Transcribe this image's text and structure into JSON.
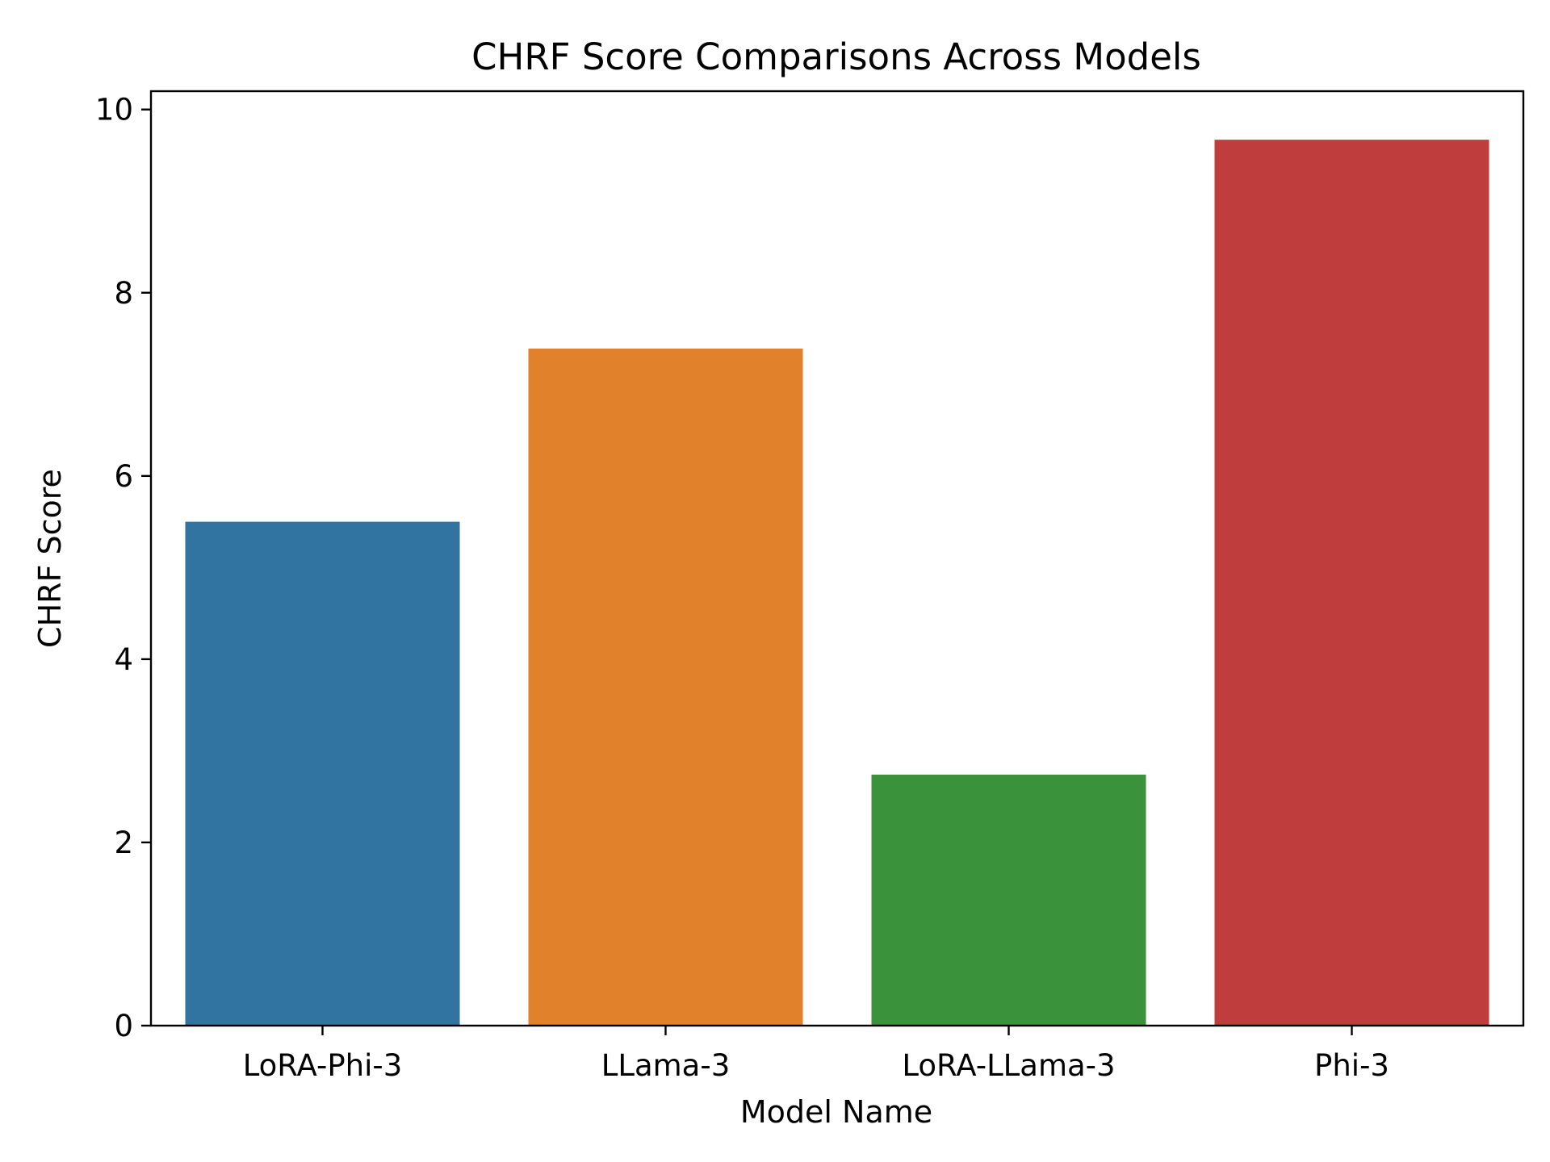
{
  "chart_data": {
    "type": "bar",
    "title": "CHRF Score Comparisons Across Models",
    "xlabel": "Model Name",
    "ylabel": "CHRF Score",
    "categories": [
      "LoRA-Phi-3",
      "LLama-3",
      "LoRA-LLama-3",
      "Phi-3"
    ],
    "values": [
      5.5,
      7.39,
      2.74,
      9.67
    ],
    "colors": [
      "#3274a1",
      "#e1812c",
      "#3a923a",
      "#c03d3e"
    ],
    "ylim": [
      0,
      10.2
    ],
    "yticks": [
      0,
      2,
      4,
      6,
      8,
      10
    ],
    "ytick_labels": [
      "0",
      "2",
      "4",
      "6",
      "8",
      "10"
    ],
    "grid": false,
    "legend": false
  }
}
